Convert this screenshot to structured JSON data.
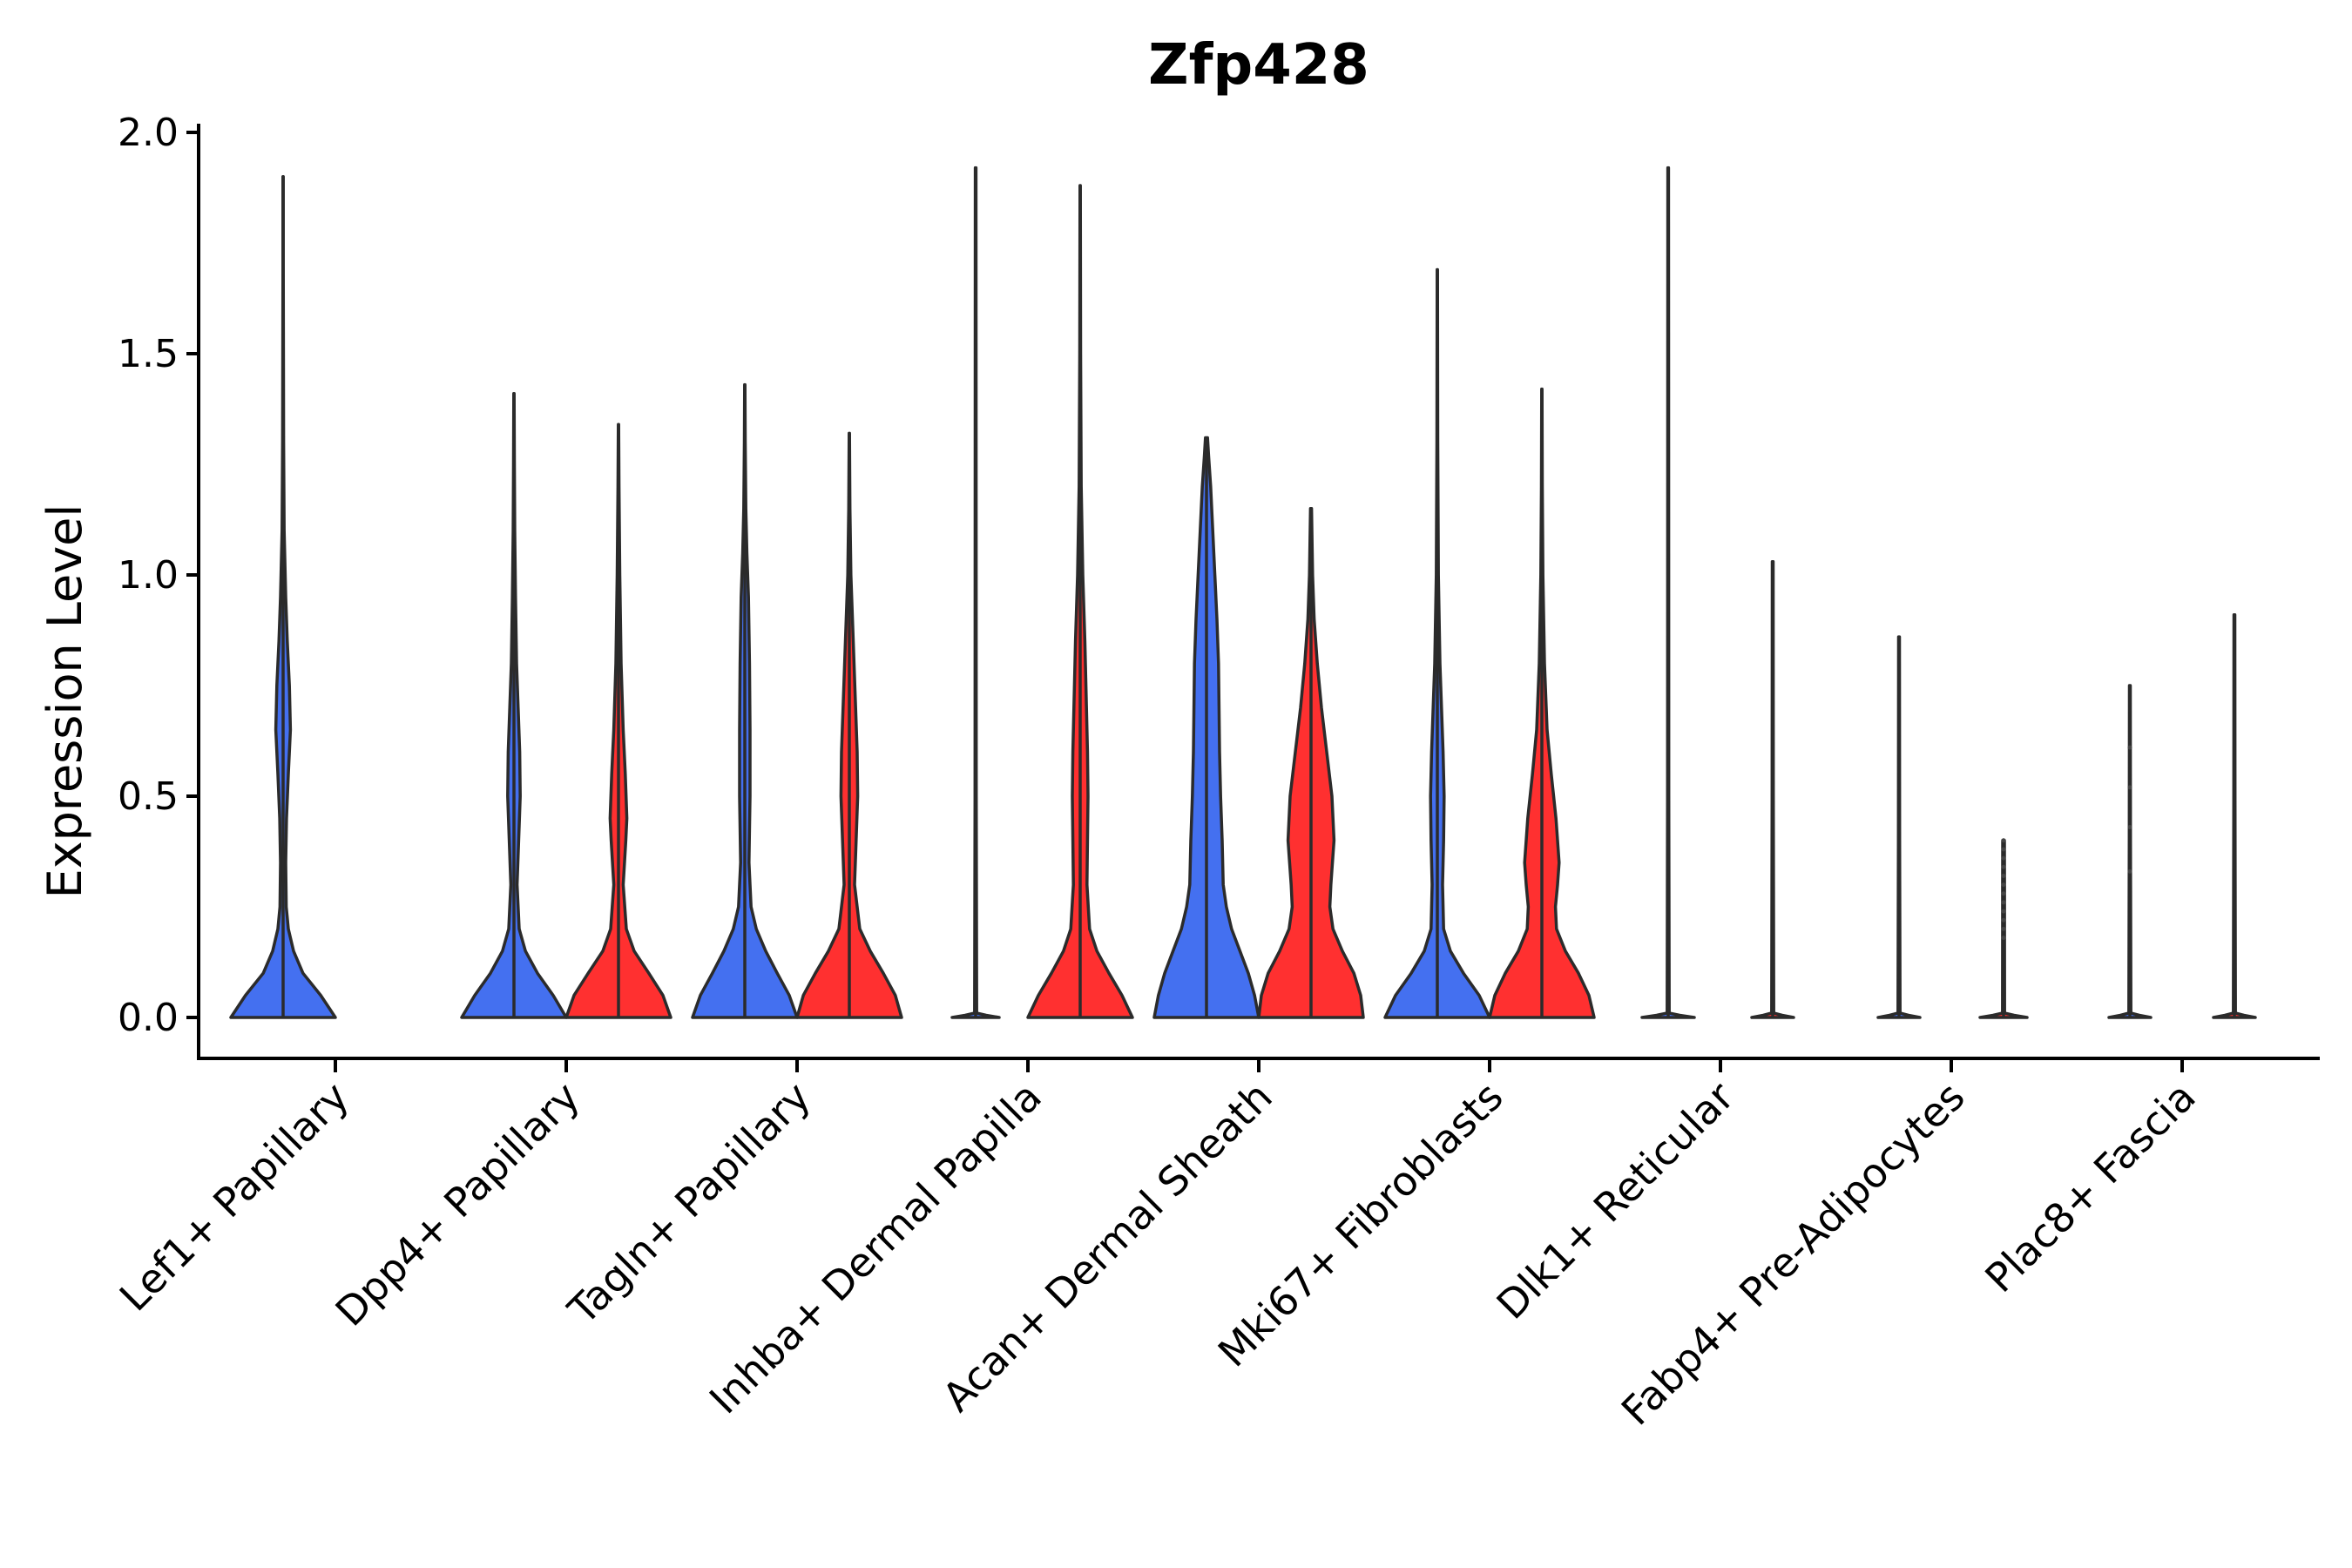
{
  "chart_data": {
    "type": "violin",
    "title": "Zfp428",
    "xlabel": "",
    "ylabel": "Expression Level",
    "ylim": [
      -0.1,
      2.0
    ],
    "yticks": [
      0.0,
      0.5,
      1.0,
      1.5,
      2.0
    ],
    "ytick_labels": [
      "0.0",
      "0.5",
      "1.0",
      "1.5",
      "2.0"
    ],
    "grid": false,
    "series_colors": {
      "blue": "#4470F0",
      "red": "#FF3030"
    },
    "categories": [
      {
        "label": "Lef1+ Papillary",
        "violins": [
          {
            "color": "blue",
            "max": 1.9,
            "shape": [
              [
                0.0,
                1.0
              ],
              [
                0.05,
                0.72
              ],
              [
                0.1,
                0.38
              ],
              [
                0.15,
                0.2
              ],
              [
                0.2,
                0.1
              ],
              [
                0.25,
                0.06
              ],
              [
                0.35,
                0.05
              ],
              [
                0.45,
                0.065
              ],
              [
                0.55,
                0.1
              ],
              [
                0.65,
                0.14
              ],
              [
                0.75,
                0.12
              ],
              [
                0.85,
                0.08
              ],
              [
                0.95,
                0.05
              ],
              [
                1.1,
                0.02
              ],
              [
                1.3,
                0.01
              ],
              [
                1.5,
                0.006
              ],
              [
                1.7,
                0.004
              ],
              [
                1.9,
                0.003
              ]
            ]
          }
        ]
      },
      {
        "label": "Dpp4+ Papillary",
        "violins": [
          {
            "color": "blue",
            "max": 1.41,
            "shape": [
              [
                0.0,
                1.0
              ],
              [
                0.05,
                0.75
              ],
              [
                0.1,
                0.45
              ],
              [
                0.15,
                0.22
              ],
              [
                0.2,
                0.1
              ],
              [
                0.3,
                0.06
              ],
              [
                0.4,
                0.09
              ],
              [
                0.5,
                0.12
              ],
              [
                0.6,
                0.11
              ],
              [
                0.7,
                0.08
              ],
              [
                0.8,
                0.05
              ],
              [
                0.95,
                0.03
              ],
              [
                1.1,
                0.015
              ],
              [
                1.25,
                0.008
              ],
              [
                1.41,
                0.004
              ]
            ]
          },
          {
            "color": "red",
            "max": 1.34,
            "shape": [
              [
                0.0,
                1.0
              ],
              [
                0.05,
                0.85
              ],
              [
                0.1,
                0.58
              ],
              [
                0.15,
                0.3
              ],
              [
                0.2,
                0.15
              ],
              [
                0.3,
                0.09
              ],
              [
                0.4,
                0.14
              ],
              [
                0.45,
                0.16
              ],
              [
                0.55,
                0.13
              ],
              [
                0.65,
                0.09
              ],
              [
                0.8,
                0.05
              ],
              [
                1.0,
                0.025
              ],
              [
                1.2,
                0.01
              ],
              [
                1.34,
                0.004
              ]
            ]
          }
        ]
      },
      {
        "label": "Tagln+ Papillary",
        "violins": [
          {
            "color": "blue",
            "max": 1.43,
            "shape": [
              [
                0.0,
                1.0
              ],
              [
                0.05,
                0.85
              ],
              [
                0.1,
                0.62
              ],
              [
                0.15,
                0.4
              ],
              [
                0.2,
                0.22
              ],
              [
                0.25,
                0.12
              ],
              [
                0.35,
                0.08
              ],
              [
                0.5,
                0.1
              ],
              [
                0.65,
                0.1
              ],
              [
                0.8,
                0.09
              ],
              [
                0.95,
                0.07
              ],
              [
                1.05,
                0.04
              ],
              [
                1.15,
                0.02
              ],
              [
                1.3,
                0.008
              ],
              [
                1.43,
                0.004
              ]
            ]
          },
          {
            "color": "red",
            "max": 1.32,
            "shape": [
              [
                0.0,
                1.0
              ],
              [
                0.05,
                0.88
              ],
              [
                0.1,
                0.65
              ],
              [
                0.15,
                0.4
              ],
              [
                0.2,
                0.2
              ],
              [
                0.3,
                0.1
              ],
              [
                0.4,
                0.13
              ],
              [
                0.5,
                0.16
              ],
              [
                0.6,
                0.15
              ],
              [
                0.7,
                0.12
              ],
              [
                0.8,
                0.09
              ],
              [
                0.9,
                0.06
              ],
              [
                1.0,
                0.03
              ],
              [
                1.15,
                0.012
              ],
              [
                1.32,
                0.004
              ]
            ]
          }
        ]
      },
      {
        "label": "Inhba+ Dermal Papilla",
        "violins": [
          {
            "color": "blue",
            "max": 1.92,
            "shape": [
              [
                0.0,
                0.45
              ],
              [
                0.005,
                0.2
              ],
              [
                0.01,
                0.02
              ],
              [
                0.5,
                0.012
              ],
              [
                1.0,
                0.01
              ],
              [
                1.5,
                0.008
              ],
              [
                1.92,
                0.006
              ]
            ]
          },
          {
            "color": "red",
            "max": 1.88,
            "shape": [
              [
                0.0,
                1.0
              ],
              [
                0.05,
                0.8
              ],
              [
                0.1,
                0.55
              ],
              [
                0.15,
                0.32
              ],
              [
                0.2,
                0.18
              ],
              [
                0.3,
                0.13
              ],
              [
                0.4,
                0.14
              ],
              [
                0.5,
                0.15
              ],
              [
                0.6,
                0.14
              ],
              [
                0.7,
                0.12
              ],
              [
                0.85,
                0.09
              ],
              [
                1.0,
                0.05
              ],
              [
                1.2,
                0.02
              ],
              [
                1.5,
                0.008
              ],
              [
                1.88,
                0.004
              ]
            ]
          }
        ]
      },
      {
        "label": "Acan+ Dermal Sheath",
        "violins": [
          {
            "color": "blue",
            "max": 1.31,
            "shape": [
              [
                0.0,
                1.0
              ],
              [
                0.05,
                0.92
              ],
              [
                0.1,
                0.8
              ],
              [
                0.15,
                0.64
              ],
              [
                0.2,
                0.48
              ],
              [
                0.25,
                0.38
              ],
              [
                0.3,
                0.32
              ],
              [
                0.4,
                0.3
              ],
              [
                0.5,
                0.27
              ],
              [
                0.6,
                0.25
              ],
              [
                0.7,
                0.24
              ],
              [
                0.8,
                0.23
              ],
              [
                0.9,
                0.2
              ],
              [
                1.0,
                0.16
              ],
              [
                1.1,
                0.12
              ],
              [
                1.2,
                0.08
              ],
              [
                1.27,
                0.04
              ],
              [
                1.31,
                0.02
              ]
            ]
          },
          {
            "color": "red",
            "max": 1.15,
            "shape": [
              [
                0.0,
                1.0
              ],
              [
                0.05,
                0.95
              ],
              [
                0.1,
                0.82
              ],
              [
                0.15,
                0.6
              ],
              [
                0.2,
                0.42
              ],
              [
                0.25,
                0.36
              ],
              [
                0.3,
                0.38
              ],
              [
                0.4,
                0.44
              ],
              [
                0.5,
                0.4
              ],
              [
                0.6,
                0.3
              ],
              [
                0.7,
                0.2
              ],
              [
                0.8,
                0.12
              ],
              [
                0.9,
                0.06
              ],
              [
                1.0,
                0.03
              ],
              [
                1.15,
                0.01
              ]
            ]
          }
        ]
      },
      {
        "label": "Mki67+ Fibroblasts",
        "violins": [
          {
            "color": "blue",
            "max": 1.69,
            "shape": [
              [
                0.0,
                1.0
              ],
              [
                0.05,
                0.8
              ],
              [
                0.1,
                0.5
              ],
              [
                0.15,
                0.25
              ],
              [
                0.2,
                0.12
              ],
              [
                0.3,
                0.1
              ],
              [
                0.4,
                0.12
              ],
              [
                0.5,
                0.13
              ],
              [
                0.6,
                0.11
              ],
              [
                0.7,
                0.08
              ],
              [
                0.8,
                0.05
              ],
              [
                1.0,
                0.02
              ],
              [
                1.3,
                0.008
              ],
              [
                1.69,
                0.004
              ]
            ]
          },
          {
            "color": "red",
            "max": 1.42,
            "shape": [
              [
                0.0,
                1.0
              ],
              [
                0.05,
                0.9
              ],
              [
                0.1,
                0.7
              ],
              [
                0.15,
                0.45
              ],
              [
                0.2,
                0.28
              ],
              [
                0.25,
                0.26
              ],
              [
                0.3,
                0.3
              ],
              [
                0.35,
                0.33
              ],
              [
                0.45,
                0.27
              ],
              [
                0.55,
                0.18
              ],
              [
                0.65,
                0.1
              ],
              [
                0.8,
                0.05
              ],
              [
                1.0,
                0.02
              ],
              [
                1.2,
                0.008
              ],
              [
                1.42,
                0.004
              ]
            ]
          }
        ]
      },
      {
        "label": "Dlk1+ Reticular",
        "violins": [
          {
            "color": "blue",
            "max": 1.92,
            "shape": [
              [
                0.0,
                0.5
              ],
              [
                0.005,
                0.22
              ],
              [
                0.01,
                0.02
              ],
              [
                0.5,
                0.012
              ],
              [
                1.0,
                0.01
              ],
              [
                1.5,
                0.008
              ],
              [
                1.92,
                0.006
              ]
            ]
          },
          {
            "color": "red",
            "max": 1.03,
            "shape": [
              [
                0.0,
                0.4
              ],
              [
                0.005,
                0.18
              ],
              [
                0.01,
                0.02
              ],
              [
                0.5,
                0.012
              ],
              [
                1.03,
                0.008
              ]
            ]
          }
        ]
      },
      {
        "label": "Fabp4+ Pre-Adipocytes",
        "violins": [
          {
            "color": "blue",
            "max": 0.86,
            "shape": [
              [
                0.0,
                0.4
              ],
              [
                0.005,
                0.18
              ],
              [
                0.01,
                0.02
              ],
              [
                0.4,
                0.012
              ],
              [
                0.86,
                0.008
              ]
            ]
          },
          {
            "color": "red",
            "max": 0.4,
            "shape": [
              [
                0.0,
                0.45
              ],
              [
                0.005,
                0.2
              ],
              [
                0.01,
                0.02
              ],
              [
                0.2,
                0.018
              ],
              [
                0.3,
                0.018
              ],
              [
                0.4,
                0.016
              ]
            ],
            "outliers": [
              0.18,
              0.2,
              0.22,
              0.24,
              0.26,
              0.28,
              0.3,
              0.32,
              0.34,
              0.36,
              0.38,
              0.4
            ]
          }
        ]
      },
      {
        "label": "Plac8+ Fascia",
        "violins": [
          {
            "color": "blue",
            "max": 0.75,
            "shape": [
              [
                0.0,
                0.4
              ],
              [
                0.005,
                0.18
              ],
              [
                0.01,
                0.02
              ],
              [
                0.4,
                0.012
              ],
              [
                0.75,
                0.008
              ]
            ],
            "outliers": [
              0.33,
              0.43,
              0.52,
              0.61
            ]
          },
          {
            "color": "red",
            "max": 0.91,
            "shape": [
              [
                0.0,
                0.4
              ],
              [
                0.005,
                0.18
              ],
              [
                0.01,
                0.02
              ],
              [
                0.5,
                0.012
              ],
              [
                0.91,
                0.008
              ]
            ]
          }
        ]
      }
    ]
  }
}
